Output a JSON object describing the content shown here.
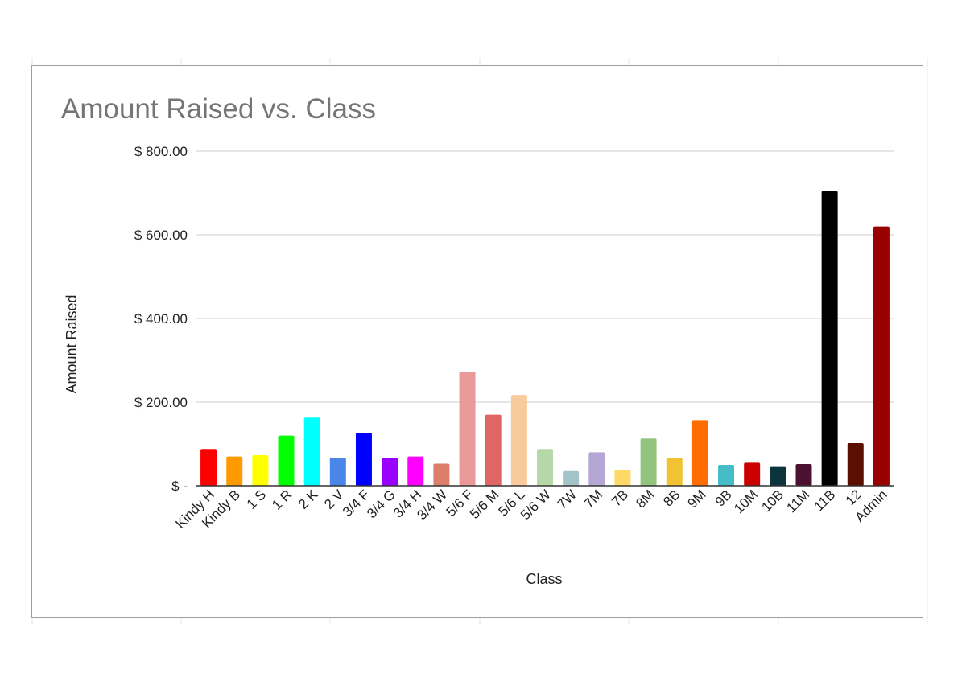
{
  "chart_data": {
    "type": "bar",
    "title": "Amount Raised vs. Class",
    "xlabel": "Class",
    "ylabel": "Amount Raised",
    "ylim": [
      0,
      800
    ],
    "yticks": [
      0,
      200,
      400,
      600,
      800
    ],
    "ytick_labels": [
      "$ -",
      "$ 200.00",
      "$ 400.00",
      "$ 600.00",
      "$ 800.00"
    ],
    "grid": true,
    "legend": "none",
    "categories": [
      "Kindy H",
      "Kindy B",
      "1 S",
      "1 R",
      "2 K",
      "2 V",
      "3/4 F",
      "3/4 G",
      "3/4 H",
      "3/4 W",
      "5/6 F",
      "5/6 M",
      "5/6 L",
      "5/6 W",
      "7W",
      "7M",
      "7B",
      "8M",
      "8B",
      "9M",
      "9B",
      "10M",
      "10B",
      "11M",
      "11B",
      "12",
      "Admin"
    ],
    "values": [
      88,
      70,
      73,
      120,
      163,
      67,
      127,
      67,
      70,
      53,
      273,
      170,
      217,
      88,
      35,
      80,
      38,
      113,
      67,
      157,
      50,
      55,
      45,
      52,
      705,
      102,
      620
    ],
    "colors": [
      "#ff0000",
      "#ff9900",
      "#ffff00",
      "#00ff00",
      "#00ffff",
      "#4a86e8",
      "#0000ff",
      "#9900ff",
      "#ff00ff",
      "#dd7e6b",
      "#ea9999",
      "#e06666",
      "#f9cb9c",
      "#b6d7a8",
      "#a2c4c9",
      "#b4a7d6",
      "#ffd966",
      "#93c47d",
      "#f1c232",
      "#ff6d01",
      "#46bdc6",
      "#cc0000",
      "#0c343d",
      "#4c1130",
      "#000000",
      "#5b0f00",
      "#990000"
    ]
  }
}
